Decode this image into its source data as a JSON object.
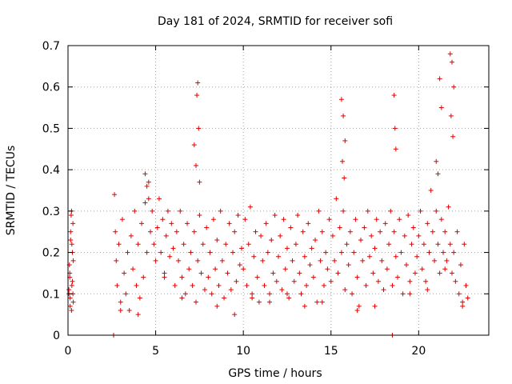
{
  "chart_data": {
    "type": "scatter",
    "title": "Day 181 of 2024, SRMTID for receiver sofi",
    "xlabel": "GPS time / hours",
    "ylabel": "SRMTID / TECUs",
    "xlim": [
      0,
      24
    ],
    "ylim": [
      0,
      0.7
    ],
    "xticks": [
      0,
      5,
      10,
      15,
      20
    ],
    "yticks": [
      0,
      0.1,
      0.2,
      0.3,
      0.4,
      0.5,
      0.6,
      0.7
    ],
    "xtick_labels": [
      "0",
      "5",
      "10",
      "15",
      "20"
    ],
    "ytick_labels": [
      "0",
      "0.1",
      "0.2",
      "0.3",
      "0.4",
      "0.5",
      "0.6",
      "0.7"
    ],
    "grid": true,
    "marker": "plus",
    "color": "#e00000",
    "series": [
      {
        "name": "SRMTID",
        "x": [
          0.05,
          0.08,
          0.1,
          0.12,
          0.15,
          0.18,
          0.2,
          0.22,
          0.25,
          0.28,
          0.3,
          0.05,
          0.1,
          0.15,
          0.2,
          0.25,
          0.3,
          0.12,
          0.22,
          0.28,
          2.65,
          2.7,
          2.75,
          2.8,
          2.9,
          3.0,
          3.1,
          3.2,
          3.3,
          3.4,
          3.5,
          3.6,
          3.7,
          3.8,
          3.9,
          4.0,
          4.1,
          4.2,
          4.3,
          4.4,
          4.5,
          4.6,
          4.7,
          4.8,
          4.9,
          5.0,
          5.1,
          5.2,
          5.3,
          5.4,
          5.5,
          5.6,
          5.7,
          5.8,
          5.9,
          6.0,
          6.1,
          6.2,
          6.3,
          6.4,
          6.5,
          6.6,
          6.7,
          6.8,
          6.9,
          7.0,
          7.1,
          7.2,
          7.3,
          7.4,
          7.5,
          7.6,
          7.7,
          7.8,
          7.9,
          8.0,
          8.1,
          8.2,
          8.3,
          8.4,
          8.5,
          8.6,
          8.7,
          8.8,
          8.9,
          9.0,
          9.1,
          9.2,
          9.3,
          9.4,
          9.5,
          9.6,
          9.7,
          9.8,
          9.9,
          10.0,
          10.1,
          10.2,
          10.3,
          10.4,
          10.5,
          10.6,
          10.7,
          10.8,
          10.9,
          11.0,
          11.1,
          11.2,
          11.3,
          11.4,
          11.5,
          11.6,
          11.7,
          11.8,
          11.9,
          12.0,
          12.1,
          12.2,
          12.3,
          12.4,
          12.5,
          12.6,
          12.7,
          12.8,
          12.9,
          13.0,
          13.1,
          13.2,
          13.3,
          13.4,
          13.5,
          13.6,
          13.7,
          13.8,
          13.9,
          14.0,
          14.1,
          14.2,
          14.3,
          14.4,
          14.5,
          14.6,
          14.7,
          14.8,
          14.9,
          15.0,
          15.1,
          15.2,
          15.3,
          15.4,
          15.5,
          15.6,
          15.7,
          15.8,
          15.9,
          16.0,
          16.1,
          16.2,
          16.3,
          16.4,
          16.5,
          16.6,
          16.7,
          16.8,
          16.9,
          17.0,
          17.1,
          17.2,
          17.3,
          17.4,
          17.5,
          17.6,
          17.7,
          17.8,
          17.9,
          18.0,
          18.1,
          18.2,
          18.3,
          18.4,
          18.5,
          18.6,
          18.7,
          18.8,
          18.9,
          19.0,
          19.1,
          19.2,
          19.3,
          19.4,
          19.5,
          19.6,
          19.7,
          19.8,
          19.9,
          20.0,
          20.1,
          20.2,
          20.3,
          20.4,
          20.5,
          20.6,
          20.7,
          20.8,
          20.9,
          21.0,
          21.1,
          21.2,
          21.3,
          21.4,
          21.5,
          21.6,
          21.7,
          21.8,
          21.9,
          22.0,
          22.1,
          22.2,
          22.3,
          22.4,
          22.5,
          22.6,
          22.7,
          22.8,
          4.4,
          4.5,
          4.6,
          7.2,
          7.3,
          7.4,
          7.35,
          7.45,
          7.5,
          15.6,
          15.7,
          15.8,
          15.65,
          15.75,
          18.6,
          18.65,
          18.7,
          21.0,
          21.1,
          21.2,
          21.3,
          21.8,
          21.9,
          22.0,
          21.85,
          21.95,
          2.6,
          18.5,
          3.0,
          4.0,
          5.5,
          6.5,
          8.5,
          9.5,
          10.5,
          11.5,
          12.5,
          13.5,
          14.5,
          16.5,
          17.5,
          19.5,
          20.5,
          21.5,
          22.5
        ],
        "y": [
          0.1,
          0.17,
          0.14,
          0.09,
          0.23,
          0.29,
          0.06,
          0.12,
          0.2,
          0.27,
          0.08,
          0.11,
          0.15,
          0.25,
          0.3,
          0.13,
          0.18,
          0.07,
          0.22,
          0.1,
          0.34,
          0.25,
          0.18,
          0.12,
          0.22,
          0.08,
          0.28,
          0.15,
          0.1,
          0.2,
          0.06,
          0.24,
          0.16,
          0.3,
          0.12,
          0.22,
          0.09,
          0.27,
          0.14,
          0.32,
          0.2,
          0.37,
          0.25,
          0.3,
          0.22,
          0.18,
          0.26,
          0.33,
          0.2,
          0.28,
          0.15,
          0.24,
          0.3,
          0.19,
          0.27,
          0.21,
          0.12,
          0.25,
          0.18,
          0.3,
          0.14,
          0.22,
          0.1,
          0.27,
          0.16,
          0.2,
          0.12,
          0.25,
          0.08,
          0.18,
          0.29,
          0.15,
          0.22,
          0.11,
          0.26,
          0.14,
          0.2,
          0.1,
          0.28,
          0.16,
          0.23,
          0.12,
          0.3,
          0.18,
          0.09,
          0.22,
          0.15,
          0.27,
          0.11,
          0.2,
          0.25,
          0.13,
          0.29,
          0.17,
          0.21,
          0.16,
          0.28,
          0.12,
          0.22,
          0.31,
          0.1,
          0.19,
          0.25,
          0.14,
          0.08,
          0.24,
          0.18,
          0.12,
          0.27,
          0.2,
          0.1,
          0.23,
          0.15,
          0.29,
          0.13,
          0.19,
          0.24,
          0.11,
          0.28,
          0.16,
          0.21,
          0.09,
          0.26,
          0.18,
          0.13,
          0.22,
          0.29,
          0.15,
          0.1,
          0.25,
          0.19,
          0.12,
          0.27,
          0.17,
          0.21,
          0.14,
          0.23,
          0.08,
          0.3,
          0.18,
          0.25,
          0.12,
          0.2,
          0.16,
          0.28,
          0.13,
          0.24,
          0.18,
          0.33,
          0.15,
          0.26,
          0.2,
          0.3,
          0.11,
          0.22,
          0.17,
          0.25,
          0.1,
          0.2,
          0.28,
          0.14,
          0.07,
          0.23,
          0.18,
          0.26,
          0.12,
          0.3,
          0.19,
          0.24,
          0.15,
          0.21,
          0.28,
          0.13,
          0.25,
          0.18,
          0.11,
          0.27,
          0.16,
          0.22,
          0.3,
          0.12,
          0.25,
          0.19,
          0.14,
          0.28,
          0.2,
          0.1,
          0.24,
          0.17,
          0.29,
          0.13,
          0.22,
          0.26,
          0.15,
          0.19,
          0.24,
          0.3,
          0.16,
          0.22,
          0.13,
          0.27,
          0.2,
          0.35,
          0.25,
          0.18,
          0.3,
          0.22,
          0.15,
          0.28,
          0.2,
          0.25,
          0.18,
          0.31,
          0.22,
          0.15,
          0.2,
          0.13,
          0.25,
          0.1,
          0.17,
          0.08,
          0.22,
          0.12,
          0.09,
          0.39,
          0.36,
          0.33,
          0.46,
          0.41,
          0.61,
          0.58,
          0.5,
          0.37,
          0.57,
          0.53,
          0.47,
          0.42,
          0.38,
          0.58,
          0.5,
          0.45,
          0.42,
          0.39,
          0.62,
          0.55,
          0.68,
          0.66,
          0.6,
          0.53,
          0.48,
          0.0,
          0.0,
          0.06,
          0.05,
          0.14,
          0.09,
          0.07,
          0.05,
          0.09,
          0.08,
          0.1,
          0.07,
          0.08,
          0.06,
          0.07,
          0.1,
          0.11,
          0.16,
          0.07
        ]
      }
    ]
  }
}
